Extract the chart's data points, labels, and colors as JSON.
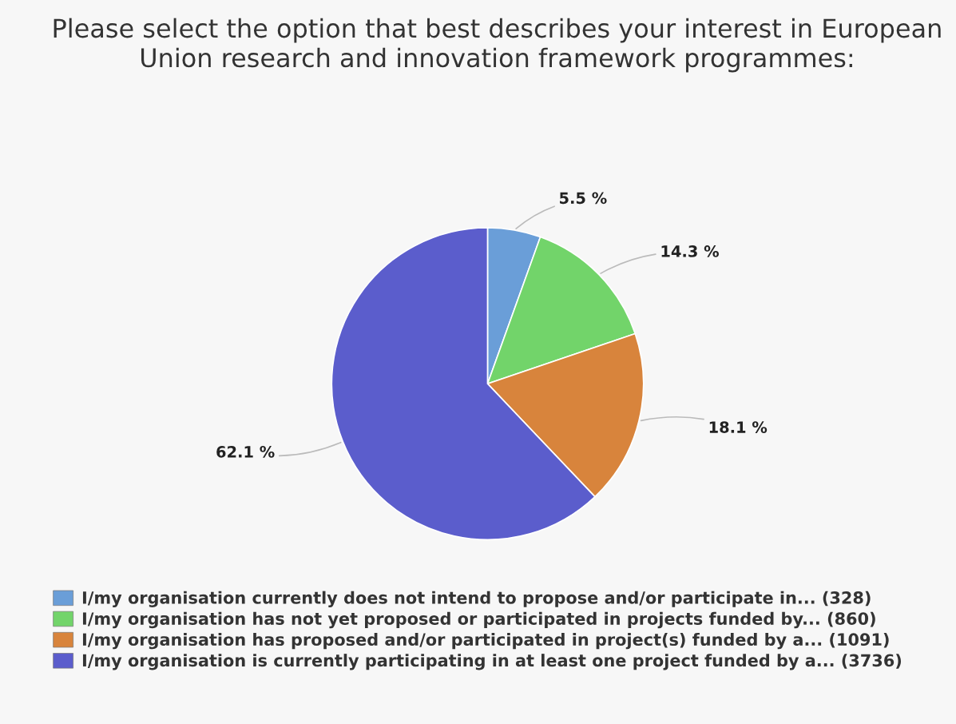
{
  "chart_data": {
    "type": "pie",
    "title": "Please select the option that best describes your interest in European Union research and innovation framework programmes:",
    "categories": [
      "I/my organisation currently does not intend to propose and/or participate in... (328)",
      "I/my organisation has not yet proposed or participated in projects funded by... (860)",
      "I/my organisation has proposed and/or participated in project(s) funded by a... (1091)",
      "I/my organisation is currently participating in at least one project funded by a... (3736)"
    ],
    "values": [
      5.5,
      14.3,
      18.1,
      62.1
    ],
    "value_labels": [
      "5.5 %",
      "14.3 %",
      "18.1 %",
      "62.1 %"
    ],
    "colors": [
      "#6a9ed8",
      "#72d46a",
      "#d8843c",
      "#5b5dcc"
    ],
    "legend": "bottom"
  }
}
